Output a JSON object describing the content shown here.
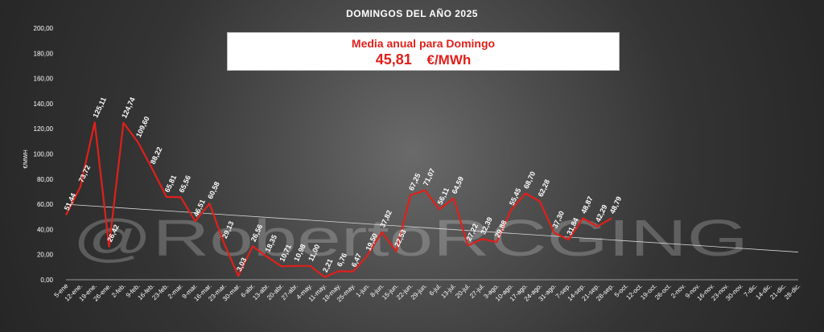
{
  "chart_data": {
    "type": "line",
    "title": "DOMINGOS DEL AÑO 2025",
    "ylabel": "€/MWH",
    "ylim": [
      0,
      200
    ],
    "yticks": [
      "0,00",
      "20,00",
      "40,00",
      "60,00",
      "80,00",
      "100,00",
      "120,00",
      "140,00",
      "160,00",
      "180,00",
      "200,00"
    ],
    "categories": [
      "5-ene",
      "12-ene.",
      "19-ene.",
      "26-ene.",
      "2-feb.",
      "9-feb.",
      "16-feb.",
      "23-feb.",
      "2-mar.",
      "9-mar.",
      "16-mar.",
      "23-mar.",
      "30-mar.",
      "6-abr.",
      "13-abr.",
      "20-abr.",
      "27-abr.",
      "4-may.",
      "11-may.",
      "18-may.",
      "25-may.",
      "1-jun.",
      "8-jun.",
      "15-jun.",
      "22-jun.",
      "29-jun.",
      "6-jul.",
      "13-jul.",
      "20-jul.",
      "27-jul.",
      "3-ago.",
      "10-ago.",
      "17-ago.",
      "24-ago.",
      "31-ago.",
      "7-sep.",
      "14-sep.",
      "21-sep.",
      "28-sep.",
      "5-oct.",
      "12-oct.",
      "19-oct.",
      "26-oct.",
      "2-nov.",
      "9-nov.",
      "16-nov.",
      "23-nov.",
      "30-nov.",
      "7-dic.",
      "14-dic.",
      "21-dic.",
      "28-dic."
    ],
    "values": [
      51.44,
      73.72,
      125.11,
      26.42,
      124.74,
      109.6,
      88.22,
      65.81,
      65.56,
      46.51,
      60.58,
      29.13,
      3.03,
      26.56,
      18.35,
      10.71,
      10.98,
      11.0,
      2.21,
      6.76,
      6.47,
      19.5,
      37.82,
      22.53,
      67.25,
      71.07,
      56.11,
      64.59,
      27.22,
      32.39,
      29.88,
      55.45,
      68.7,
      62.28,
      37.3,
      31.84,
      48.87,
      42.29,
      48.79
    ],
    "labels": [
      "51,44",
      "73,72",
      "125,11",
      "26,42",
      "124,74",
      "109,60",
      "88,22",
      "65,81",
      "65,56",
      "46,51",
      "60,58",
      "29,13",
      "3,03",
      "26,56",
      "18,35",
      "10,71",
      "10,98",
      "11,00",
      "2,21",
      "6,76",
      "6,47",
      "19,50",
      "37,82",
      "22,53",
      "67,25",
      "71,07",
      "56,11",
      "64,59",
      "27,22",
      "32,39",
      "29,88",
      "55,45",
      "68,70",
      "62,28",
      "37,30",
      "31,84",
      "48,87",
      "42,29",
      "48,79"
    ],
    "trendline": {
      "start": 60,
      "end": 22
    },
    "colors": {
      "series": "#e0201b",
      "trend": "#d9d9d9"
    },
    "grid": false,
    "watermark": "@RobertoRCGING"
  },
  "summary": {
    "label": "Media anual para Domingo",
    "value": "45,81",
    "unit": "€/MWh"
  }
}
